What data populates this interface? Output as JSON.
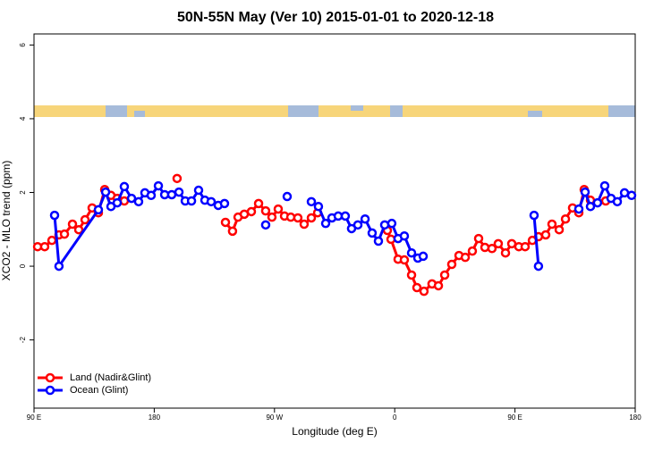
{
  "chart_data": {
    "type": "line",
    "title": "50N-55N May (Ver 10)   2015-01-01 to 2020-12-18",
    "x_label": "Longitude (deg E)",
    "y_label": "XCO2 - MLO trend (ppm)",
    "xlim": [
      90,
      540
    ],
    "xticks": [
      {
        "value": 90,
        "label": "90 E"
      },
      180,
      {
        "value": 270,
        "label": "90 W"
      },
      {
        "value": 360,
        "label": "0"
      },
      {
        "value": 450,
        "label": "90 E"
      },
      {
        "value": 540,
        "label": "180"
      }
    ],
    "ylim": [
      -3.85,
      6.3
    ],
    "yticks": [
      -2,
      0,
      2,
      4,
      6
    ],
    "legend": "bottom-left",
    "series": [
      {
        "name": "Land (Nadir&Glint)",
        "color": "#ff0000",
        "x": [
          92.7,
          98.0,
          103.4,
          108.7,
          112.8,
          118.8,
          123.5,
          128.2,
          133.5,
          138.2,
          142.9,
          147.6,
          152.3,
          157.6,
          null,
          197.1,
          null,
          233.3,
          238.6,
          242.7,
          247.4,
          252.7,
          258.1,
          263.4,
          268.1,
          272.8,
          277.5,
          282.2,
          287.5,
          292.2,
          297.6,
          302.3,
          null,
          354.5,
          357.2,
          362.5,
          367.2,
          372.6,
          376.6,
          381.9,
          387.9,
          392.7,
          397.4,
          402.7,
          408.1,
          412.8,
          418.1,
          422.8,
          427.5,
          432.8,
          437.5,
          442.9,
          447.6,
          452.9,
          457.6,
          463.0,
          467.6,
          473.0,
          477.7,
          483.1,
          487.8,
          493.1,
          497.8,
          501.8,
          506.5,
          517.9
        ],
        "values": [
          0.53,
          0.53,
          0.7,
          0.85,
          0.87,
          1.14,
          0.99,
          1.26,
          1.58,
          1.45,
          2.08,
          1.92,
          1.84,
          1.77,
          null,
          2.38,
          null,
          1.19,
          0.95,
          1.33,
          1.41,
          1.48,
          1.7,
          1.5,
          1.33,
          1.55,
          1.36,
          1.33,
          1.31,
          1.14,
          1.31,
          1.45,
          null,
          0.97,
          0.73,
          0.19,
          0.17,
          -0.24,
          -0.58,
          -0.68,
          -0.48,
          -0.53,
          -0.24,
          0.05,
          0.29,
          0.24,
          0.41,
          0.75,
          0.51,
          0.48,
          0.61,
          0.36,
          0.61,
          0.53,
          0.53,
          0.7,
          0.8,
          0.85,
          1.14,
          0.99,
          1.28,
          1.58,
          1.45,
          2.08,
          1.79,
          1.77
        ]
      },
      {
        "name": "Ocean (Glint)",
        "color": "#0000ff",
        "x": [
          105.4,
          108.7,
          138.2,
          143.6,
          147.6,
          152.3,
          157.6,
          163.0,
          168.3,
          173.0,
          177.7,
          183.1,
          187.8,
          193.1,
          198.5,
          203.2,
          207.9,
          213.2,
          217.9,
          222.6,
          227.9,
          232.6,
          null,
          263.4,
          null,
          279.5,
          null,
          297.6,
          302.9,
          308.3,
          313.0,
          317.7,
          323.0,
          327.7,
          332.4,
          337.8,
          343.1,
          347.8,
          352.5,
          357.8,
          362.5,
          367.2,
          372.6,
          377.3,
          381.3,
          null,
          464.3,
          467.6,
          null,
          497.8,
          502.5,
          506.5,
          511.8,
          517.2,
          521.9,
          526.6,
          532.0,
          537.3
        ],
        "values": [
          1.38,
          0,
          1.53,
          2.01,
          1.62,
          1.72,
          2.16,
          1.84,
          1.75,
          1.99,
          1.92,
          2.18,
          1.94,
          1.94,
          2.01,
          1.77,
          1.77,
          2.06,
          1.79,
          1.75,
          1.65,
          1.7,
          null,
          1.12,
          null,
          1.89,
          null,
          1.75,
          1.62,
          1.16,
          1.31,
          1.36,
          1.36,
          1.02,
          1.12,
          1.28,
          0.9,
          0.68,
          1.12,
          1.16,
          0.75,
          0.82,
          0.36,
          0.22,
          0.27,
          null,
          1.38,
          0,
          null,
          1.55,
          2.01,
          1.62,
          1.72,
          2.18,
          1.84,
          1.75,
          1.99,
          1.92
        ]
      }
    ]
  }
}
